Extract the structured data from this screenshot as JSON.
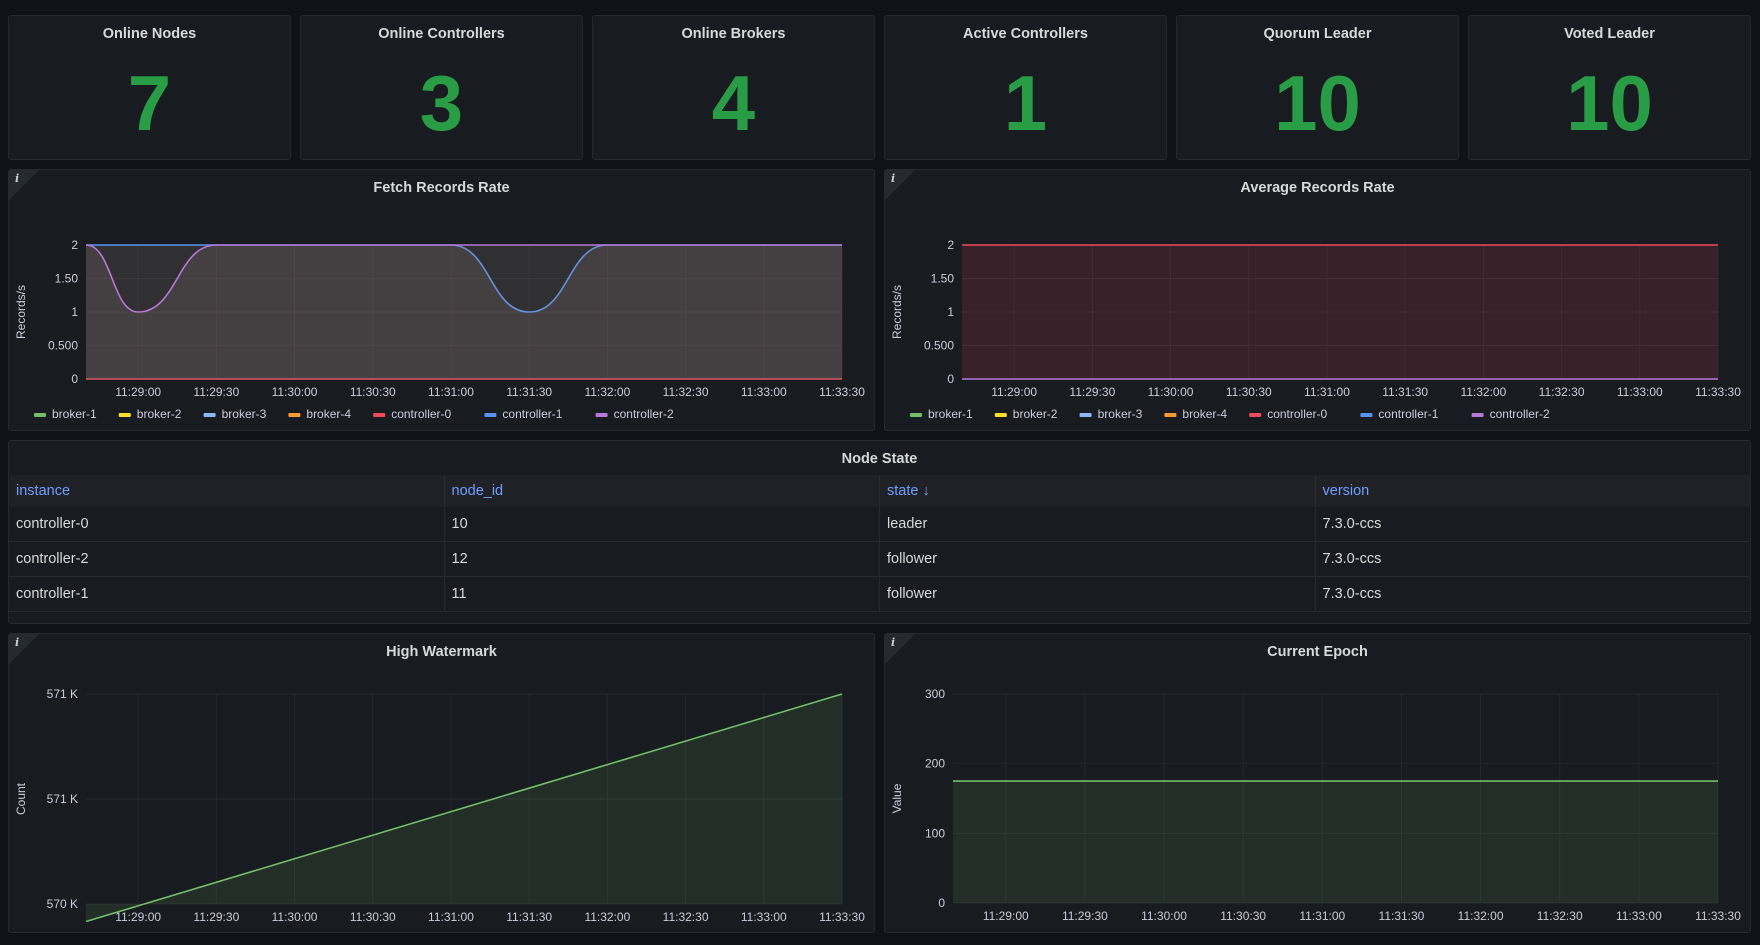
{
  "stats": [
    {
      "title": "Online Nodes",
      "value": "7"
    },
    {
      "title": "Online Controllers",
      "value": "3"
    },
    {
      "title": "Online Brokers",
      "value": "4"
    },
    {
      "title": "Active Controllers",
      "value": "1"
    },
    {
      "title": "Quorum Leader",
      "value": "10"
    },
    {
      "title": "Voted Leader",
      "value": "10"
    }
  ],
  "colors": {
    "stat_green": "#299c46",
    "broker-1": "#73bf69",
    "broker-2": "#fade2a",
    "broker-3": "#8ab8ff",
    "broker-4": "#ff9830",
    "controller-0": "#f2495c",
    "controller-1": "#5794f2",
    "controller-2": "#b877d9"
  },
  "time_ticks": [
    "11:29:00",
    "11:29:30",
    "11:30:00",
    "11:30:30",
    "11:31:00",
    "11:31:30",
    "11:32:00",
    "11:32:30",
    "11:33:00",
    "11:33:30"
  ],
  "legend": [
    "broker-1",
    "broker-2",
    "broker-3",
    "broker-4",
    "controller-0",
    "controller-1",
    "controller-2"
  ],
  "fetch_panel": {
    "title": "Fetch Records Rate",
    "info_icon": "i",
    "chart_data": {
      "type": "area",
      "title": "Fetch Records Rate",
      "ylabel": "Records/s",
      "yticks": [
        "0",
        "0.500",
        "1",
        "1.50",
        "2"
      ],
      "ylim": [
        0,
        2
      ],
      "x": [
        "11:28:40",
        "11:29:00",
        "11:29:30",
        "11:30:00",
        "11:30:30",
        "11:31:00",
        "11:31:30",
        "11:32:00",
        "11:32:30",
        "11:33:00",
        "11:33:30"
      ],
      "series": [
        {
          "name": "controller-0",
          "values": [
            0,
            0,
            0,
            0,
            0,
            0,
            0,
            0,
            0,
            0,
            0
          ]
        },
        {
          "name": "controller-1",
          "values": [
            2,
            2,
            2,
            2,
            2,
            2,
            1,
            2,
            2,
            2,
            2
          ]
        },
        {
          "name": "controller-2",
          "values": [
            2,
            1,
            2,
            2,
            2,
            2,
            2,
            2,
            2,
            2,
            2
          ]
        }
      ]
    }
  },
  "avg_panel": {
    "title": "Average Records Rate",
    "info_icon": "i",
    "chart_data": {
      "type": "area",
      "title": "Average Records Rate",
      "ylabel": "Records/s",
      "yticks": [
        "0",
        "0.500",
        "1",
        "1.50",
        "2"
      ],
      "ylim": [
        0,
        2
      ],
      "x": [
        "11:28:40",
        "11:29:00",
        "11:29:30",
        "11:30:00",
        "11:30:30",
        "11:31:00",
        "11:31:30",
        "11:32:00",
        "11:32:30",
        "11:33:00",
        "11:33:30"
      ],
      "series": [
        {
          "name": "controller-0",
          "values": [
            2,
            2,
            2,
            2,
            2,
            2,
            2,
            2,
            2,
            2,
            2
          ]
        },
        {
          "name": "controller-2",
          "values": [
            0,
            0,
            0,
            0,
            0,
            0,
            0,
            0,
            0,
            0,
            0
          ]
        }
      ]
    }
  },
  "node_state": {
    "title": "Node State",
    "columns": [
      "instance",
      "node_id",
      "state ↓",
      "version"
    ],
    "rows": [
      [
        "controller-0",
        "10",
        "leader",
        "7.3.0-ccs"
      ],
      [
        "controller-2",
        "12",
        "follower",
        "7.3.0-ccs"
      ],
      [
        "controller-1",
        "11",
        "follower",
        "7.3.0-ccs"
      ]
    ]
  },
  "hw_panel": {
    "title": "High Watermark",
    "info_icon": "i",
    "chart_data": {
      "type": "area",
      "title": "High Watermark",
      "ylabel": "Count",
      "yticks": [
        "570 K",
        "571 K",
        "571 K"
      ],
      "ylim": [
        569800,
        571000
      ],
      "x": [
        "11:28:40",
        "11:33:30"
      ],
      "series": [
        {
          "name": "",
          "values": [
            569700,
            571000
          ]
        }
      ]
    }
  },
  "epoch_panel": {
    "title": "Current Epoch",
    "info_icon": "i",
    "chart_data": {
      "type": "area",
      "title": "Current Epoch",
      "ylabel": "Value",
      "yticks": [
        "0",
        "100",
        "200",
        "300"
      ],
      "ylim": [
        0,
        300
      ],
      "x": [
        "11:28:40",
        "11:33:30"
      ],
      "series": [
        {
          "name": "",
          "values": [
            175,
            175
          ]
        }
      ]
    }
  }
}
